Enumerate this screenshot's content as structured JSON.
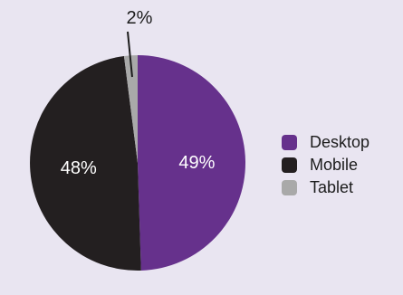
{
  "chart_data": {
    "type": "pie",
    "title": "",
    "categories": [
      "Desktop",
      "Mobile",
      "Tablet"
    ],
    "values": [
      49,
      48,
      2
    ],
    "labels": [
      "49%",
      "48%",
      "2%"
    ],
    "colors": [
      "#66318c",
      "#231f20",
      "#a9a9a9"
    ],
    "legend_position": "right"
  }
}
